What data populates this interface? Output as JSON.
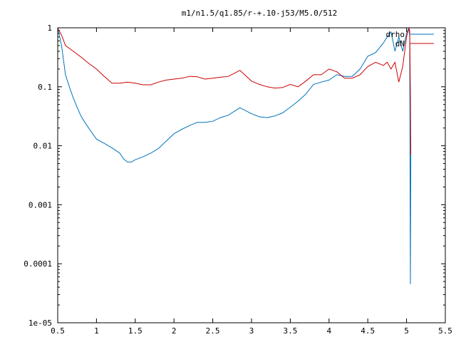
{
  "chart_data": {
    "type": "line",
    "title": "m1/n1.5/q1.85/r-+.10-j53/M5.0/512",
    "xlabel": "",
    "ylabel": "",
    "xlim": [
      0.5,
      5.5
    ],
    "ylim": [
      1e-05,
      1
    ],
    "yscale": "log",
    "grid": false,
    "legend_position": "top-right",
    "x_ticks": [
      "0.5",
      "1",
      "1.5",
      "2",
      "2.5",
      "3",
      "3.5",
      "4",
      "4.5",
      "5",
      "5.5"
    ],
    "y_ticks": [
      "1",
      "0.1",
      "0.01",
      "0.001",
      "0.0001",
      "1e-05"
    ],
    "series": [
      {
        "name": "drho",
        "color": "#0072bd",
        "points": [
          [
            0.5,
            1.0
          ],
          [
            0.55,
            0.5
          ],
          [
            0.6,
            0.16
          ],
          [
            0.65,
            0.1
          ],
          [
            0.7,
            0.065
          ],
          [
            0.75,
            0.045
          ],
          [
            0.8,
            0.032
          ],
          [
            0.85,
            0.025
          ],
          [
            0.9,
            0.02
          ],
          [
            0.95,
            0.016
          ],
          [
            1.0,
            0.013
          ],
          [
            1.1,
            0.011
          ],
          [
            1.2,
            0.0092
          ],
          [
            1.3,
            0.0075
          ],
          [
            1.35,
            0.006
          ],
          [
            1.4,
            0.0053
          ],
          [
            1.45,
            0.0053
          ],
          [
            1.5,
            0.0058
          ],
          [
            1.6,
            0.0065
          ],
          [
            1.7,
            0.0075
          ],
          [
            1.8,
            0.009
          ],
          [
            1.9,
            0.012
          ],
          [
            2.0,
            0.016
          ],
          [
            2.1,
            0.019
          ],
          [
            2.2,
            0.022
          ],
          [
            2.3,
            0.025
          ],
          [
            2.4,
            0.025
          ],
          [
            2.5,
            0.026
          ],
          [
            2.6,
            0.03
          ],
          [
            2.7,
            0.033
          ],
          [
            2.8,
            0.04
          ],
          [
            2.85,
            0.044
          ],
          [
            2.9,
            0.041
          ],
          [
            3.0,
            0.035
          ],
          [
            3.1,
            0.031
          ],
          [
            3.2,
            0.03
          ],
          [
            3.3,
            0.032
          ],
          [
            3.4,
            0.036
          ],
          [
            3.5,
            0.045
          ],
          [
            3.6,
            0.057
          ],
          [
            3.7,
            0.075
          ],
          [
            3.8,
            0.11
          ],
          [
            3.9,
            0.12
          ],
          [
            4.0,
            0.13
          ],
          [
            4.1,
            0.16
          ],
          [
            4.2,
            0.15
          ],
          [
            4.3,
            0.15
          ],
          [
            4.4,
            0.2
          ],
          [
            4.5,
            0.33
          ],
          [
            4.6,
            0.38
          ],
          [
            4.7,
            0.55
          ],
          [
            4.75,
            0.7
          ],
          [
            4.8,
            0.85
          ],
          [
            4.85,
            0.4
          ],
          [
            4.9,
            0.7
          ],
          [
            4.95,
            0.4
          ],
          [
            5.0,
            0.8
          ],
          [
            5.03,
            1.0
          ],
          [
            5.04,
            0.7
          ],
          [
            5.05,
            4.5e-05
          ],
          [
            5.055,
            0.007
          ]
        ]
      },
      {
        "name": "dN",
        "color": "#cc0000",
        "points": [
          [
            0.5,
            1.0
          ],
          [
            0.55,
            0.75
          ],
          [
            0.6,
            0.5
          ],
          [
            0.7,
            0.4
          ],
          [
            0.8,
            0.32
          ],
          [
            0.9,
            0.25
          ],
          [
            1.0,
            0.2
          ],
          [
            1.1,
            0.15
          ],
          [
            1.2,
            0.115
          ],
          [
            1.3,
            0.115
          ],
          [
            1.4,
            0.12
          ],
          [
            1.5,
            0.115
          ],
          [
            1.6,
            0.108
          ],
          [
            1.7,
            0.108
          ],
          [
            1.8,
            0.12
          ],
          [
            1.9,
            0.13
          ],
          [
            2.0,
            0.135
          ],
          [
            2.1,
            0.14
          ],
          [
            2.2,
            0.15
          ],
          [
            2.3,
            0.148
          ],
          [
            2.4,
            0.135
          ],
          [
            2.5,
            0.14
          ],
          [
            2.6,
            0.145
          ],
          [
            2.7,
            0.15
          ],
          [
            2.8,
            0.175
          ],
          [
            2.85,
            0.19
          ],
          [
            2.9,
            0.165
          ],
          [
            3.0,
            0.125
          ],
          [
            3.1,
            0.11
          ],
          [
            3.2,
            0.1
          ],
          [
            3.3,
            0.095
          ],
          [
            3.4,
            0.097
          ],
          [
            3.5,
            0.11
          ],
          [
            3.6,
            0.1
          ],
          [
            3.7,
            0.125
          ],
          [
            3.8,
            0.16
          ],
          [
            3.9,
            0.16
          ],
          [
            4.0,
            0.2
          ],
          [
            4.1,
            0.18
          ],
          [
            4.2,
            0.14
          ],
          [
            4.3,
            0.14
          ],
          [
            4.4,
            0.16
          ],
          [
            4.5,
            0.22
          ],
          [
            4.6,
            0.26
          ],
          [
            4.7,
            0.23
          ],
          [
            4.75,
            0.26
          ],
          [
            4.8,
            0.2
          ],
          [
            4.85,
            0.26
          ],
          [
            4.9,
            0.12
          ],
          [
            4.95,
            0.22
          ],
          [
            5.0,
            0.7
          ],
          [
            5.03,
            1.0
          ],
          [
            5.04,
            0.9
          ],
          [
            5.05,
            0.08
          ],
          [
            5.055,
            0.007
          ]
        ]
      }
    ]
  }
}
